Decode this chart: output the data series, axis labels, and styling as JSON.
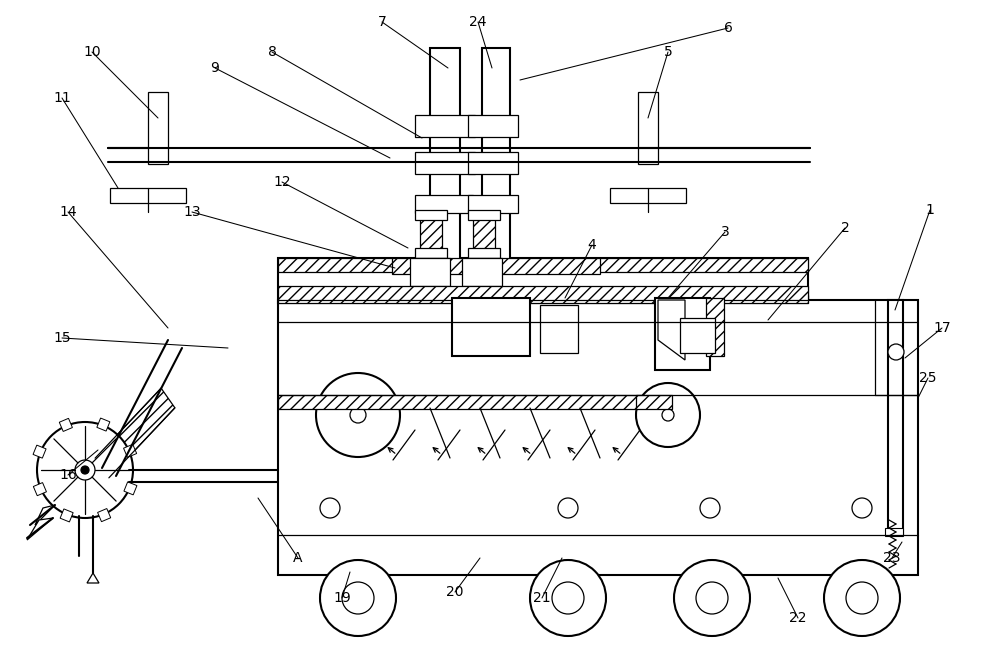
{
  "bg_color": "#ffffff",
  "lc": "#000000",
  "labels": [
    [
      "1",
      930,
      210
    ],
    [
      "2",
      845,
      228
    ],
    [
      "3",
      725,
      232
    ],
    [
      "4",
      592,
      245
    ],
    [
      "5",
      668,
      52
    ],
    [
      "6",
      728,
      28
    ],
    [
      "7",
      382,
      22
    ],
    [
      "8",
      272,
      52
    ],
    [
      "9",
      215,
      68
    ],
    [
      "10",
      92,
      52
    ],
    [
      "11",
      62,
      98
    ],
    [
      "12",
      282,
      182
    ],
    [
      "13",
      192,
      212
    ],
    [
      "14",
      68,
      212
    ],
    [
      "15",
      62,
      338
    ],
    [
      "16",
      68,
      475
    ],
    [
      "17",
      942,
      328
    ],
    [
      "19",
      342,
      598
    ],
    [
      "20",
      455,
      592
    ],
    [
      "21",
      542,
      598
    ],
    [
      "22",
      798,
      618
    ],
    [
      "23",
      892,
      558
    ],
    [
      "24",
      478,
      22
    ],
    [
      "25",
      928,
      378
    ],
    [
      "A",
      298,
      558
    ]
  ],
  "leaders": [
    [
      "1",
      930,
      210,
      895,
      310
    ],
    [
      "2",
      845,
      228,
      768,
      320
    ],
    [
      "3",
      725,
      232,
      668,
      298
    ],
    [
      "4",
      592,
      245,
      565,
      298
    ],
    [
      "5",
      668,
      52,
      648,
      118
    ],
    [
      "6",
      728,
      28,
      520,
      80
    ],
    [
      "7",
      382,
      22,
      448,
      68
    ],
    [
      "8",
      272,
      52,
      422,
      138
    ],
    [
      "9",
      215,
      68,
      390,
      158
    ],
    [
      "10",
      92,
      52,
      158,
      118
    ],
    [
      "11",
      62,
      98,
      118,
      188
    ],
    [
      "12",
      282,
      182,
      408,
      248
    ],
    [
      "13",
      192,
      212,
      395,
      268
    ],
    [
      "14",
      68,
      212,
      168,
      328
    ],
    [
      "15",
      62,
      338,
      228,
      348
    ],
    [
      "16",
      68,
      475,
      98,
      450
    ],
    [
      "17",
      942,
      328,
      905,
      358
    ],
    [
      "19",
      342,
      598,
      350,
      572
    ],
    [
      "20",
      455,
      592,
      480,
      558
    ],
    [
      "21",
      542,
      598,
      562,
      558
    ],
    [
      "22",
      798,
      618,
      778,
      578
    ],
    [
      "23",
      892,
      558,
      902,
      542
    ],
    [
      "24",
      478,
      22,
      492,
      68
    ],
    [
      "25",
      928,
      378,
      918,
      398
    ],
    [
      "A",
      298,
      558,
      258,
      498
    ]
  ]
}
